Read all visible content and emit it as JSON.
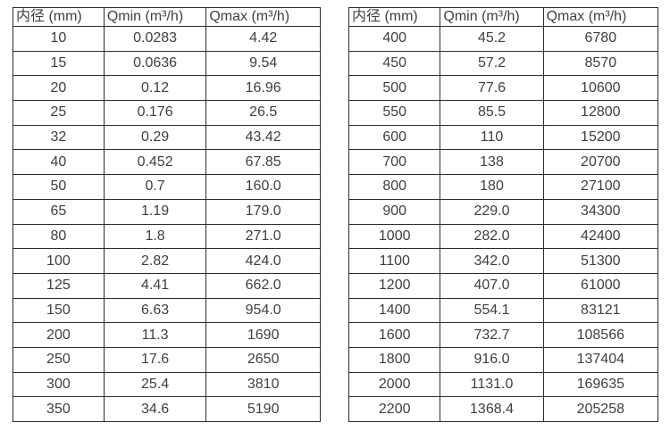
{
  "colors": {
    "background": "#ffffff",
    "border": "#2c2c2c",
    "text": "#3f3f3f"
  },
  "tables": [
    {
      "name": "flow-spec-table-small-diameters",
      "headers": [
        "内径 (mm)",
        "Qmin (m³/h)",
        "Qmax (m³/h)"
      ],
      "rows": [
        [
          "10",
          "0.0283",
          "4.42"
        ],
        [
          "15",
          "0.0636",
          "9.54"
        ],
        [
          "20",
          "0.12",
          "16.96"
        ],
        [
          "25",
          "0.176",
          "26.5"
        ],
        [
          "32",
          "0.29",
          "43.42"
        ],
        [
          "40",
          "0.452",
          "67.85"
        ],
        [
          "50",
          "0.7",
          "160.0"
        ],
        [
          "65",
          "1.19",
          "179.0"
        ],
        [
          "80",
          "1.8",
          "271.0"
        ],
        [
          "100",
          "2.82",
          "424.0"
        ],
        [
          "125",
          "4.41",
          "662.0"
        ],
        [
          "150",
          "6.63",
          "954.0"
        ],
        [
          "200",
          "11.3",
          "1690"
        ],
        [
          "250",
          "17.6",
          "2650"
        ],
        [
          "300",
          "25.4",
          "3810"
        ],
        [
          "350",
          "34.6",
          "5190"
        ]
      ]
    },
    {
      "name": "flow-spec-table-large-diameters",
      "headers": [
        "内径 (mm)",
        "Qmin (m³/h)",
        "Qmax (m³/h)"
      ],
      "rows": [
        [
          "400",
          "45.2",
          "6780"
        ],
        [
          "450",
          "57.2",
          "8570"
        ],
        [
          "500",
          "77.6",
          "10600"
        ],
        [
          "550",
          "85.5",
          "12800"
        ],
        [
          "600",
          "110",
          "15200"
        ],
        [
          "700",
          "138",
          "20700"
        ],
        [
          "800",
          "180",
          "27100"
        ],
        [
          "900",
          "229.0",
          "34300"
        ],
        [
          "1000",
          "282.0",
          "42400"
        ],
        [
          "1100",
          "342.0",
          "51300"
        ],
        [
          "1200",
          "407.0",
          "61000"
        ],
        [
          "1400",
          "554.1",
          "83121"
        ],
        [
          "1600",
          "732.7",
          "108566"
        ],
        [
          "1800",
          "916.0",
          "137404"
        ],
        [
          "2000",
          "1131.0",
          "169635"
        ],
        [
          "2200",
          "1368.4",
          "205258"
        ]
      ]
    }
  ]
}
